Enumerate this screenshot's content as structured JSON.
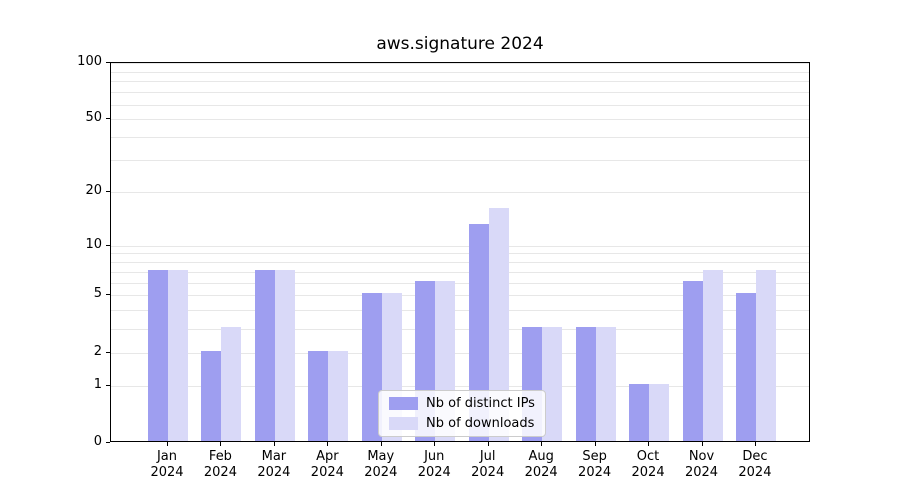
{
  "chart_data": {
    "type": "bar",
    "title": "aws.signature 2024",
    "scale": "log1p",
    "grid": true,
    "legend_position": "bottom-center",
    "categories": [
      "Jan",
      "Feb",
      "Mar",
      "Apr",
      "May",
      "Jun",
      "Jul",
      "Aug",
      "Sep",
      "Oct",
      "Nov",
      "Dec"
    ],
    "year_label": "2024",
    "series": [
      {
        "name": "Nb of distinct IPs",
        "color": "#9e9ef0",
        "values": [
          7,
          2,
          7,
          2,
          5,
          6,
          13,
          3,
          3,
          1,
          6,
          5
        ]
      },
      {
        "name": "Nb of downloads",
        "color": "#d9d9f8",
        "values": [
          7,
          3,
          7,
          2,
          5,
          6,
          16,
          3,
          3,
          1,
          7,
          7
        ]
      }
    ],
    "y_ticks": [
      0,
      1,
      2,
      5,
      10,
      20,
      50,
      100
    ],
    "grid_values": [
      1,
      2,
      3,
      4,
      5,
      6,
      7,
      8,
      9,
      10,
      20,
      30,
      40,
      50,
      60,
      70,
      80,
      90,
      100
    ],
    "ylim": [
      0,
      100
    ],
    "colors": {
      "axis": "#000000",
      "grid": "#e7e7e7",
      "background": "#ffffff",
      "text": "#000000"
    }
  }
}
